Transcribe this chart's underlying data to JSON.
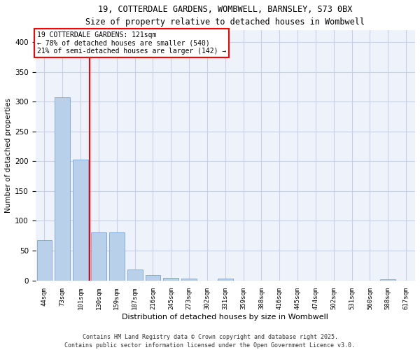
{
  "title_line1": "19, COTTERDALE GARDENS, WOMBWELL, BARNSLEY, S73 0BX",
  "title_line2": "Size of property relative to detached houses in Wombwell",
  "xlabel": "Distribution of detached houses by size in Wombwell",
  "ylabel": "Number of detached properties",
  "bar_color": "#b8d0ea",
  "bar_edge_color": "#6699cc",
  "background_color": "#eef2fb",
  "grid_color": "#c8d0e8",
  "categories": [
    "44sqm",
    "73sqm",
    "101sqm",
    "130sqm",
    "159sqm",
    "187sqm",
    "216sqm",
    "245sqm",
    "273sqm",
    "302sqm",
    "331sqm",
    "359sqm",
    "388sqm",
    "416sqm",
    "445sqm",
    "474sqm",
    "502sqm",
    "531sqm",
    "560sqm",
    "588sqm",
    "617sqm"
  ],
  "values": [
    68,
    308,
    203,
    80,
    80,
    18,
    9,
    4,
    3,
    0,
    3,
    0,
    0,
    0,
    0,
    0,
    0,
    0,
    0,
    2,
    0
  ],
  "ylim": [
    0,
    420
  ],
  "yticks": [
    0,
    50,
    100,
    150,
    200,
    250,
    300,
    350,
    400
  ],
  "vline_x_index": 2.5,
  "property_label": "19 COTTERDALE GARDENS: 121sqm",
  "pct_smaller": "78% of detached houses are smaller (540)",
  "pct_larger": "21% of semi-detached houses are larger (142)",
  "footer_line1": "Contains HM Land Registry data © Crown copyright and database right 2025.",
  "footer_line2": "Contains public sector information licensed under the Open Government Licence v3.0."
}
